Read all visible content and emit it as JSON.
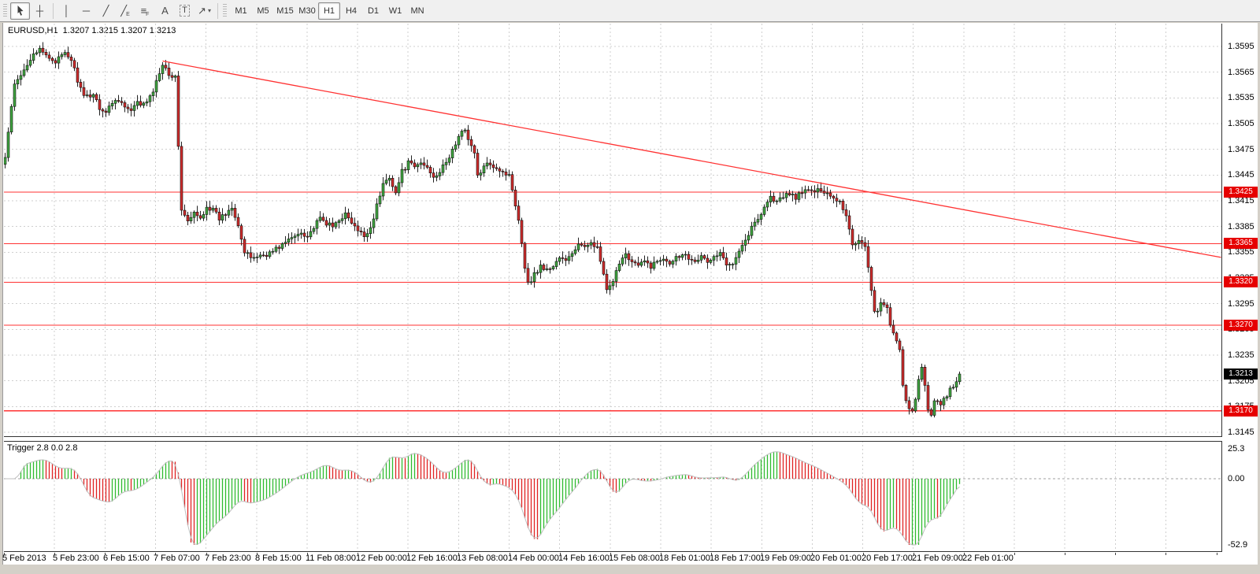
{
  "toolbar": {
    "tools": [
      {
        "id": "cursor",
        "glyph": "svg-cursor",
        "active": true
      },
      {
        "id": "crosshair",
        "glyph": "┼"
      },
      {
        "id": "vertical-line",
        "glyph": "│"
      },
      {
        "id": "horizontal-line",
        "glyph": "─"
      },
      {
        "id": "trendline",
        "glyph": "╱"
      },
      {
        "id": "equidistant-channel",
        "glyph": "╱",
        "sub": "E"
      },
      {
        "id": "fibonacci",
        "glyph": "≡",
        "sub": "F"
      },
      {
        "id": "text",
        "glyph": "A"
      },
      {
        "id": "text-label",
        "glyph": "T",
        "boxed": true
      },
      {
        "id": "arrows",
        "glyph": "↗",
        "caret": "▾"
      }
    ],
    "timeframes": [
      {
        "label": "M1"
      },
      {
        "label": "M5"
      },
      {
        "label": "M15"
      },
      {
        "label": "M30"
      },
      {
        "label": "H1",
        "active": true
      },
      {
        "label": "H4"
      },
      {
        "label": "D1"
      },
      {
        "label": "W1"
      },
      {
        "label": "MN"
      }
    ]
  },
  "chart": {
    "title": "EURUSD,H1  1.3207 1.3215 1.3207 1.3213"
  },
  "chart_data": {
    "type": "candlestick",
    "symbol": "EURUSD",
    "timeframe": "H1",
    "ohlc": {
      "open": "1.3207",
      "high": "1.3215",
      "low": "1.3207",
      "close": "1.3213"
    },
    "current_price": {
      "value": 1.3213,
      "label": "1.3213"
    },
    "y_axis": {
      "ticks": [
        "1.3595",
        "1.3565",
        "1.3535",
        "1.3505",
        "1.3475",
        "1.3445",
        "1.3415",
        "1.3385",
        "1.3355",
        "1.3325",
        "1.3295",
        "1.3265",
        "1.3235",
        "1.3205",
        "1.3175",
        "1.3145"
      ]
    },
    "x_axis": {
      "labels": [
        "5 Feb 2013",
        "5 Feb 23:00",
        "6 Feb 15:00",
        "7 Feb 07:00",
        "7 Feb 23:00",
        "8 Feb 15:00",
        "11 Feb 08:00",
        "12 Feb 00:00",
        "12 Feb 16:00",
        "13 Feb 08:00",
        "14 Feb 00:00",
        "14 Feb 16:00",
        "15 Feb 08:00",
        "18 Feb 01:00",
        "18 Feb 17:00",
        "19 Feb 09:00",
        "20 Feb 01:00",
        "20 Feb 17:00",
        "21 Feb 09:00",
        "22 Feb 01:00"
      ]
    },
    "horizontal_lines": [
      {
        "price": 1.3425,
        "label": "1.3425"
      },
      {
        "price": 1.3365,
        "label": "1.3365"
      },
      {
        "price": 1.332,
        "label": "1.3320"
      },
      {
        "price": 1.327,
        "label": "1.3270"
      },
      {
        "price": 1.317,
        "label": "1.3170"
      }
    ],
    "trendline": {
      "from": {
        "bar": 50,
        "price": 1.3578
      },
      "to": {
        "bar": 386,
        "price": 1.3349
      }
    },
    "close_waypoints": [
      [
        0,
        1.3465
      ],
      [
        1,
        1.3495
      ],
      [
        3,
        1.355
      ],
      [
        5,
        1.356
      ],
      [
        7,
        1.3575
      ],
      [
        9,
        1.3588
      ],
      [
        11,
        1.359
      ],
      [
        13,
        1.3584
      ],
      [
        16,
        1.3578
      ],
      [
        19,
        1.3586
      ],
      [
        21,
        1.358
      ],
      [
        23,
        1.3556
      ],
      [
        25,
        1.3535
      ],
      [
        28,
        1.354
      ],
      [
        30,
        1.3524
      ],
      [
        32,
        1.3518
      ],
      [
        34,
        1.353
      ],
      [
        36,
        1.3534
      ],
      [
        38,
        1.3524
      ],
      [
        40,
        1.3519
      ],
      [
        42,
        1.3529
      ],
      [
        44,
        1.3527
      ],
      [
        46,
        1.3535
      ],
      [
        48,
        1.3553
      ],
      [
        50,
        1.3576
      ],
      [
        52,
        1.3564
      ],
      [
        54,
        1.3558
      ],
      [
        55,
        1.348
      ],
      [
        56,
        1.3405
      ],
      [
        58,
        1.339
      ],
      [
        60,
        1.34
      ],
      [
        62,
        1.3394
      ],
      [
        64,
        1.3409
      ],
      [
        66,
        1.3404
      ],
      [
        68,
        1.3394
      ],
      [
        70,
        1.34
      ],
      [
        72,
        1.3409
      ],
      [
        74,
        1.3388
      ],
      [
        76,
        1.3354
      ],
      [
        78,
        1.3349
      ],
      [
        81,
        1.3351
      ],
      [
        84,
        1.3354
      ],
      [
        86,
        1.3359
      ],
      [
        88,
        1.3364
      ],
      [
        90,
        1.3369
      ],
      [
        92,
        1.3374
      ],
      [
        94,
        1.3379
      ],
      [
        96,
        1.3374
      ],
      [
        98,
        1.3384
      ],
      [
        100,
        1.3394
      ],
      [
        102,
        1.3389
      ],
      [
        104,
        1.3384
      ],
      [
        106,
        1.3394
      ],
      [
        108,
        1.3399
      ],
      [
        110,
        1.3389
      ],
      [
        112,
        1.3379
      ],
      [
        114,
        1.3374
      ],
      [
        116,
        1.3384
      ],
      [
        118,
        1.3409
      ],
      [
        120,
        1.3434
      ],
      [
        122,
        1.3444
      ],
      [
        124,
        1.3424
      ],
      [
        126,
        1.3449
      ],
      [
        128,
        1.3459
      ],
      [
        130,
        1.3454
      ],
      [
        132,
        1.3459
      ],
      [
        134,
        1.3454
      ],
      [
        136,
        1.3444
      ],
      [
        138,
        1.3449
      ],
      [
        140,
        1.3459
      ],
      [
        142,
        1.3474
      ],
      [
        144,
        1.3489
      ],
      [
        146,
        1.3499
      ],
      [
        147,
        1.3489
      ],
      [
        149,
        1.3469
      ],
      [
        150,
        1.3444
      ],
      [
        152,
        1.3454
      ],
      [
        154,
        1.3459
      ],
      [
        156,
        1.3454
      ],
      [
        158,
        1.3449
      ],
      [
        160,
        1.3444
      ],
      [
        161,
        1.3429
      ],
      [
        163,
        1.3394
      ],
      [
        165,
        1.3339
      ],
      [
        166,
        1.3318
      ],
      [
        168,
        1.3329
      ],
      [
        170,
        1.3339
      ],
      [
        172,
        1.3334
      ],
      [
        174,
        1.3339
      ],
      [
        176,
        1.3349
      ],
      [
        178,
        1.3344
      ],
      [
        180,
        1.3354
      ],
      [
        182,
        1.3364
      ],
      [
        184,
        1.3359
      ],
      [
        186,
        1.3369
      ],
      [
        188,
        1.3359
      ],
      [
        190,
        1.3329
      ],
      [
        191,
        1.3309
      ],
      [
        193,
        1.3319
      ],
      [
        195,
        1.3344
      ],
      [
        197,
        1.3354
      ],
      [
        199,
        1.3344
      ],
      [
        201,
        1.3339
      ],
      [
        203,
        1.3344
      ],
      [
        205,
        1.3339
      ],
      [
        207,
        1.3344
      ],
      [
        209,
        1.3349
      ],
      [
        211,
        1.3344
      ],
      [
        213,
        1.3349
      ],
      [
        215,
        1.3354
      ],
      [
        217,
        1.3349
      ],
      [
        219,
        1.3347
      ],
      [
        221,
        1.3349
      ],
      [
        223,
        1.3344
      ],
      [
        225,
        1.3349
      ],
      [
        227,
        1.3354
      ],
      [
        229,
        1.3339
      ],
      [
        231,
        1.3344
      ],
      [
        233,
        1.3359
      ],
      [
        235,
        1.3369
      ],
      [
        237,
        1.3384
      ],
      [
        239,
        1.3394
      ],
      [
        241,
        1.3409
      ],
      [
        243,
        1.3419
      ],
      [
        245,
        1.3414
      ],
      [
        247,
        1.3419
      ],
      [
        249,
        1.3424
      ],
      [
        251,
        1.3419
      ],
      [
        253,
        1.3424
      ],
      [
        255,
        1.3429
      ],
      [
        257,
        1.3424
      ],
      [
        259,
        1.3429
      ],
      [
        261,
        1.3424
      ],
      [
        263,
        1.3419
      ],
      [
        265,
        1.3414
      ],
      [
        267,
        1.3399
      ],
      [
        269,
        1.3364
      ],
      [
        271,
        1.3369
      ],
      [
        273,
        1.3364
      ],
      [
        275,
        1.3309
      ],
      [
        276,
        1.3284
      ],
      [
        278,
        1.3294
      ],
      [
        280,
        1.3289
      ],
      [
        281,
        1.3269
      ],
      [
        283,
        1.3254
      ],
      [
        284,
        1.3239
      ],
      [
        285,
        1.3199
      ],
      [
        286,
        1.3179
      ],
      [
        288,
        1.3169
      ],
      [
        289,
        1.3184
      ],
      [
        290,
        1.3204
      ],
      [
        291,
        1.3219
      ],
      [
        292,
        1.3199
      ],
      [
        293,
        1.3174
      ],
      [
        294,
        1.3164
      ],
      [
        295,
        1.3179
      ],
      [
        296,
        1.3184
      ],
      [
        297,
        1.3179
      ],
      [
        298,
        1.3184
      ],
      [
        300,
        1.3194
      ],
      [
        301,
        1.3199
      ],
      [
        302,
        1.3204
      ],
      [
        303,
        1.3213
      ]
    ],
    "colors": {
      "up": "#3fa53f",
      "down": "#d02b2b",
      "wick": "#222222",
      "line_red": "#ff3232",
      "badge_red": "#e60000",
      "badge_black": "#000000",
      "grid": "#cfcfcf",
      "trend": "#ff3232"
    }
  },
  "indicator": {
    "label": "Trigger 2.8 0.0 2.8",
    "name": "Trigger",
    "params": [
      "2.8",
      "0.0",
      "2.8"
    ],
    "scale": {
      "max": "25.3",
      "zero": "0.00",
      "min": "-52.9"
    },
    "colors": {
      "up": "#2fbb2f",
      "down": "#e02222",
      "signal": "#bfbfbf",
      "zero_line": "#a0a0a0"
    },
    "render_hints": {
      "fast_period": 5,
      "slow_period": 25,
      "scale_factor": 5000
    }
  }
}
